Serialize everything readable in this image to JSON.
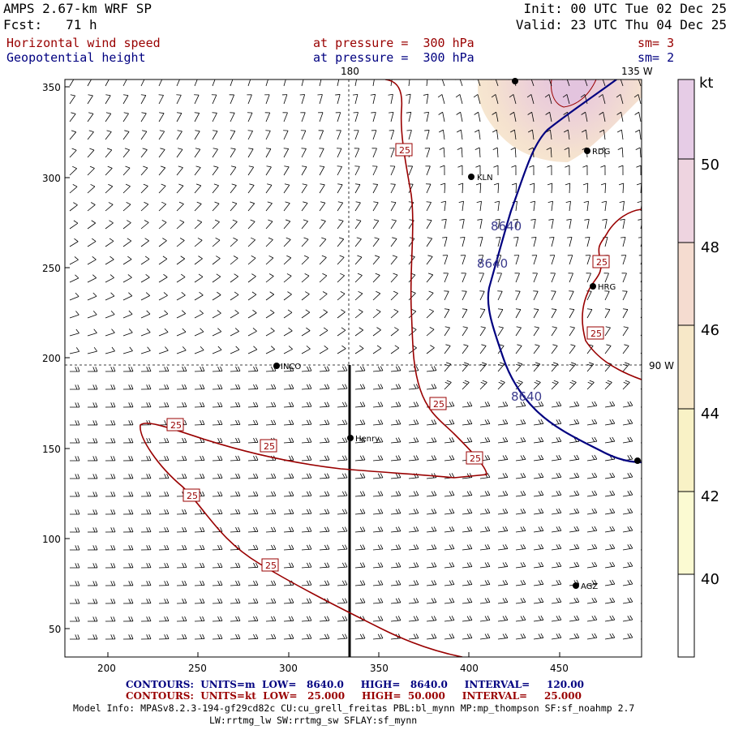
{
  "header": {
    "model": "AMPS 2.67-km WRF SP",
    "fcst_label": "Fcst:",
    "fcst_value": "71 h",
    "init": "Init: 00 UTC Tue 02 Dec 25",
    "valid": "Valid: 23 UTC Thu 04 Dec 25",
    "field1_name": "Horizontal wind speed",
    "field1_level": "at pressure =  300 hPa",
    "field1_sm": "sm= 3",
    "field2_name": "Geopotential height",
    "field2_level": "at pressure =  300 hPa",
    "field2_sm": "sm= 2"
  },
  "map": {
    "lon_labels": {
      "top_180": "180",
      "top_135w": "135 W",
      "right_90w": "90 W"
    },
    "x_ticks": [
      "200",
      "250",
      "300",
      "350",
      "400",
      "450"
    ],
    "y_ticks": [
      "350",
      "300",
      "250",
      "200",
      "150",
      "100",
      "50"
    ],
    "stations": [
      {
        "name": "INCO"
      },
      {
        "name": "KLN"
      },
      {
        "name": "RDG"
      },
      {
        "name": "HRG"
      },
      {
        "name": "Henry"
      },
      {
        "name": "AGZ"
      }
    ],
    "wind_contour_label": "25",
    "height_contour_label": "8640"
  },
  "colorbar": {
    "unit": "kt",
    "labels": [
      "50",
      "48",
      "46",
      "44",
      "42",
      "40"
    ],
    "colors": [
      "#e6cce6",
      "#eed4e0",
      "#f5dcd0",
      "#f7e8c8",
      "#f9f2c6",
      "#fbfad2",
      "#ffffff"
    ]
  },
  "footer": {
    "line1_label": "CONTOURS:",
    "line1_units": "UNITS=m",
    "line1_low": "LOW=   8640.0",
    "line1_high": "HIGH=   8640.0",
    "line1_interval": "INTERVAL=     120.00",
    "line2_label": "CONTOURS:",
    "line2_units": "UNITS=kt",
    "line2_low": "LOW=   25.000",
    "line2_high": "HIGH=  50.000",
    "line2_interval": "INTERVAL=     25.000",
    "model_info": "Model Info: MPASv8.2.3-194-gf29cd82c CU:cu_grell_freitas PBL:bl_mynn MP:mp_thompson SF:sf_noahmp 2.7",
    "model_info2": "LW:rrtmg_lw SW:rrtmg_sw SFLAY:sf_mynn"
  }
}
